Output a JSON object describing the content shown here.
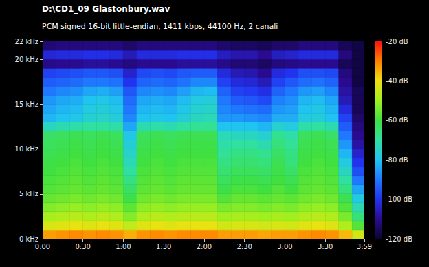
{
  "chart_data": {
    "type": "heatmap",
    "title": "D:\\CD1_09 Glastonbury.wav",
    "subtitle": "PCM signed 16-bit little-endian, 1411 kbps, 44100 Hz, 2 canali",
    "xlim": [
      0,
      239
    ],
    "xticks": [
      {
        "value": 0,
        "label": "0:00"
      },
      {
        "value": 30,
        "label": "0:30"
      },
      {
        "value": 60,
        "label": "1:00"
      },
      {
        "value": 90,
        "label": "1:30"
      },
      {
        "value": 120,
        "label": "2:00"
      },
      {
        "value": 150,
        "label": "2:30"
      },
      {
        "value": 180,
        "label": "3:00"
      },
      {
        "value": 210,
        "label": "3:30"
      },
      {
        "value": 239,
        "label": "3:59"
      }
    ],
    "ylim": [
      0,
      22
    ],
    "yticks": [
      {
        "value": 0,
        "label": "0 kHz"
      },
      {
        "value": 5,
        "label": "5 kHz"
      },
      {
        "value": 10,
        "label": "10 kHz"
      },
      {
        "value": 15,
        "label": "15 kHz"
      },
      {
        "value": 20,
        "label": "20 kHz"
      },
      {
        "value": 22,
        "label": "22 kHz"
      }
    ],
    "zlim": [
      -120,
      -20
    ],
    "zticks": [
      {
        "value": -120,
        "label": "-120 dB"
      },
      {
        "value": -100,
        "label": "-100 dB"
      },
      {
        "value": -80,
        "label": "-80 dB"
      },
      {
        "value": -60,
        "label": "-60 dB"
      },
      {
        "value": -40,
        "label": "-40 dB"
      },
      {
        "value": -20,
        "label": "-20 dB"
      }
    ],
    "x_bins": [
      0,
      10,
      20,
      30,
      40,
      50,
      60,
      70,
      80,
      90,
      100,
      110,
      120,
      130,
      140,
      150,
      160,
      170,
      180,
      190,
      200,
      210,
      220,
      230,
      239
    ],
    "y_bins": [
      0,
      1,
      2,
      3,
      4,
      5,
      6,
      7,
      8,
      9,
      10,
      11,
      12,
      13,
      14,
      15,
      16,
      17,
      18,
      19,
      20,
      21,
      22
    ],
    "cells": [
      [
        -33,
        -43,
        -49,
        -53,
        -56,
        -58,
        -59,
        -60,
        -61,
        -62,
        -63,
        -64,
        -74,
        -82,
        -84,
        -86,
        -90,
        -94,
        -98,
        -111,
        -103,
        -113
      ],
      [
        -32,
        -42,
        -48,
        -52,
        -55,
        -57,
        -58,
        -59,
        -60,
        -61,
        -62,
        -63,
        -72,
        -80,
        -82,
        -84,
        -88,
        -93,
        -97,
        -110,
        -102,
        -112
      ],
      [
        -31,
        -41,
        -47,
        -51,
        -54,
        -56,
        -57,
        -58,
        -59,
        -60,
        -61,
        -62,
        -71,
        -79,
        -81,
        -83,
        -87,
        -92,
        -96,
        -110,
        -102,
        -112
      ],
      [
        -32,
        -42,
        -48,
        -52,
        -55,
        -57,
        -58,
        -59,
        -60,
        -61,
        -62,
        -63,
        -70,
        -76,
        -78,
        -80,
        -84,
        -90,
        -95,
        -109,
        -101,
        -112
      ],
      [
        -31,
        -41,
        -47,
        -51,
        -54,
        -56,
        -57,
        -58,
        -59,
        -60,
        -61,
        -62,
        -70,
        -75,
        -77,
        -79,
        -83,
        -90,
        -95,
        -109,
        -101,
        -112
      ],
      [
        -32,
        -42,
        -48,
        -52,
        -55,
        -57,
        -58,
        -59,
        -60,
        -61,
        -62,
        -63,
        -71,
        -77,
        -79,
        -81,
        -85,
        -91,
        -96,
        -110,
        -102,
        -112
      ],
      [
        -35,
        -46,
        -53,
        -57,
        -61,
        -64,
        -67,
        -70,
        -73,
        -75,
        -77,
        -79,
        -84,
        -88,
        -90,
        -92,
        -95,
        -100,
        -104,
        -112,
        -106,
        -114
      ],
      [
        -32,
        -42,
        -48,
        -52,
        -55,
        -57,
        -58,
        -59,
        -60,
        -61,
        -62,
        -63,
        -72,
        -80,
        -82,
        -84,
        -88,
        -93,
        -97,
        -110,
        -102,
        -112
      ],
      [
        -31,
        -41,
        -47,
        -51,
        -54,
        -56,
        -57,
        -58,
        -59,
        -60,
        -61,
        -62,
        -71,
        -79,
        -81,
        -83,
        -87,
        -92,
        -96,
        -110,
        -102,
        -112
      ],
      [
        -32,
        -42,
        -48,
        -52,
        -55,
        -57,
        -58,
        -59,
        -60,
        -61,
        -62,
        -63,
        -72,
        -80,
        -82,
        -84,
        -88,
        -93,
        -97,
        -110,
        -102,
        -112
      ],
      [
        -31,
        -41,
        -47,
        -51,
        -54,
        -56,
        -57,
        -58,
        -59,
        -60,
        -61,
        -62,
        -70,
        -77,
        -79,
        -81,
        -85,
        -91,
        -95,
        -109,
        -101,
        -112
      ],
      [
        -31,
        -41,
        -47,
        -51,
        -54,
        -56,
        -57,
        -58,
        -59,
        -60,
        -61,
        -62,
        -69,
        -74,
        -76,
        -78,
        -82,
        -88,
        -94,
        -109,
        -101,
        -112
      ],
      [
        -31,
        -41,
        -47,
        -51,
        -54,
        -56,
        -57,
        -58,
        -59,
        -60,
        -61,
        -62,
        -69,
        -73,
        -75,
        -77,
        -81,
        -88,
        -94,
        -109,
        -101,
        -112
      ],
      [
        -33,
        -44,
        -50,
        -54,
        -58,
        -61,
        -63,
        -65,
        -67,
        -69,
        -71,
        -73,
        -80,
        -86,
        -88,
        -90,
        -93,
        -98,
        -102,
        -111,
        -105,
        -114
      ],
      [
        -33,
        -43,
        -49,
        -53,
        -56,
        -59,
        -61,
        -63,
        -65,
        -67,
        -70,
        -74,
        -80,
        -86,
        -90,
        -94,
        -98,
        -102,
        -106,
        -113,
        -107,
        -115
      ],
      [
        -33,
        -43,
        -49,
        -53,
        -56,
        -59,
        -61,
        -63,
        -65,
        -67,
        -70,
        -74,
        -80,
        -87,
        -91,
        -95,
        -99,
        -103,
        -107,
        -113,
        -107,
        -115
      ],
      [
        -34,
        -44,
        -50,
        -54,
        -57,
        -60,
        -62,
        -64,
        -66,
        -68,
        -72,
        -76,
        -82,
        -88,
        -92,
        -97,
        -101,
        -106,
        -110,
        -115,
        -110,
        -116
      ],
      [
        -33,
        -43,
        -49,
        -53,
        -56,
        -58,
        -60,
        -61,
        -62,
        -64,
        -66,
        -68,
        -76,
        -83,
        -86,
        -89,
        -93,
        -98,
        -102,
        -112,
        -105,
        -114
      ],
      [
        -33,
        -44,
        -50,
        -54,
        -57,
        -60,
        -62,
        -64,
        -66,
        -67,
        -69,
        -71,
        -78,
        -83,
        -85,
        -87,
        -90,
        -95,
        -100,
        -111,
        -104,
        -114
      ],
      [
        -32,
        -42,
        -48,
        -52,
        -55,
        -57,
        -58,
        -59,
        -60,
        -61,
        -62,
        -63,
        -71,
        -78,
        -80,
        -82,
        -86,
        -92,
        -96,
        -110,
        -102,
        -112
      ],
      [
        -31,
        -41,
        -47,
        -51,
        -54,
        -56,
        -57,
        -58,
        -59,
        -60,
        -61,
        -62,
        -70,
        -77,
        -79,
        -81,
        -85,
        -91,
        -96,
        -110,
        -102,
        -112
      ],
      [
        -32,
        -42,
        -48,
        -52,
        -55,
        -57,
        -58,
        -59,
        -60,
        -61,
        -62,
        -64,
        -72,
        -80,
        -82,
        -84,
        -88,
        -93,
        -97,
        -110,
        -102,
        -112
      ],
      [
        -36,
        -48,
        -54,
        -58,
        -62,
        -66,
        -70,
        -74,
        -78,
        -82,
        -86,
        -90,
        -94,
        -98,
        -102,
        -106,
        -108,
        -110,
        -112,
        -116,
        -112,
        -116
      ],
      [
        -44,
        -58,
        -66,
        -72,
        -78,
        -84,
        -90,
        -96,
        -100,
        -104,
        -108,
        -110,
        -112,
        -114,
        -116,
        -116,
        -116,
        -118,
        -118,
        -118,
        -118,
        -118
      ]
    ]
  }
}
